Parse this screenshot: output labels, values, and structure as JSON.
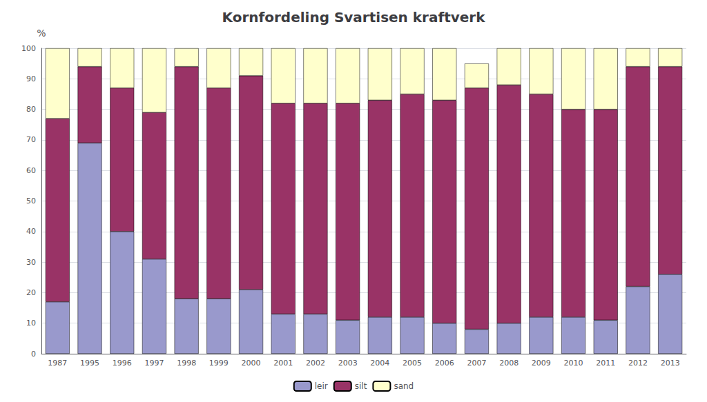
{
  "chart_data": {
    "type": "bar",
    "title": "Kornfordeling Svartisen kraftverk",
    "ylabel": "%",
    "categories": [
      "1987",
      "1995",
      "1996",
      "1997",
      "1998",
      "1999",
      "2000",
      "2001",
      "2002",
      "2003",
      "2004",
      "2005",
      "2006",
      "2007",
      "2008",
      "2009",
      "2010",
      "2011",
      "2012",
      "2013"
    ],
    "series": [
      {
        "name": "leir",
        "color": "#9999cc",
        "values": [
          17,
          69,
          40,
          31,
          18,
          18,
          21,
          13,
          13,
          11,
          12,
          12,
          10,
          8,
          10,
          12,
          12,
          11,
          22,
          26
        ]
      },
      {
        "name": "silt",
        "color": "#993366",
        "values": [
          60,
          25,
          47,
          48,
          76,
          69,
          70,
          69,
          69,
          71,
          71,
          73,
          73,
          79,
          78,
          73,
          68,
          69,
          72,
          68
        ]
      },
      {
        "name": "sand",
        "color": "#ffffcc",
        "values": [
          23,
          6,
          13,
          21,
          6,
          13,
          9,
          18,
          18,
          18,
          17,
          15,
          17,
          8,
          12,
          15,
          20,
          20,
          6,
          6
        ]
      }
    ],
    "stacked": true,
    "ylim": [
      0,
      100
    ],
    "yticks": [
      0,
      10,
      20,
      30,
      40,
      50,
      60,
      70,
      80,
      90,
      100
    ],
    "grid": true,
    "legend": "bottom"
  }
}
